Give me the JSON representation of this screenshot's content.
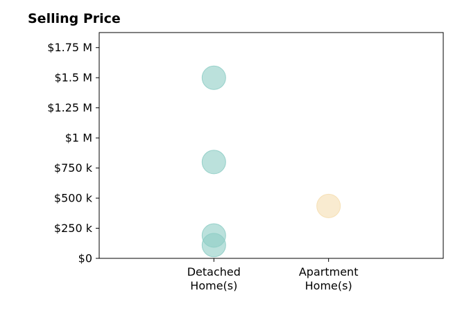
{
  "chart_data": {
    "type": "scatter",
    "title": "Selling Price",
    "categories": [
      {
        "lines": [
          "Detached",
          "Home(s)"
        ]
      },
      {
        "lines": [
          "Apartment",
          "Home(s)"
        ]
      }
    ],
    "y_ticks": [
      {
        "value": 0,
        "label": "$0"
      },
      {
        "value": 250000,
        "label": "$250 k"
      },
      {
        "value": 500000,
        "label": "$500 k"
      },
      {
        "value": 750000,
        "label": "$750 k"
      },
      {
        "value": 1000000,
        "label": "$1 M"
      },
      {
        "value": 1250000,
        "label": "$1.25 M"
      },
      {
        "value": 1500000,
        "label": "$1.5 M"
      },
      {
        "value": 1750000,
        "label": "$1.75 M"
      }
    ],
    "ylim": [
      0,
      1875000
    ],
    "xlim": [
      0,
      3
    ],
    "grid": false,
    "points": [
      {
        "category_index": 0,
        "value": 1500000,
        "color": "#8ecdc5"
      },
      {
        "category_index": 0,
        "value": 800000,
        "color": "#8ecdc5"
      },
      {
        "category_index": 0,
        "value": 190000,
        "color": "#8ecdc5"
      },
      {
        "category_index": 0,
        "value": 110000,
        "color": "#8ecdc5"
      },
      {
        "category_index": 1,
        "value": 435000,
        "color": "#f5deb0"
      }
    ]
  }
}
